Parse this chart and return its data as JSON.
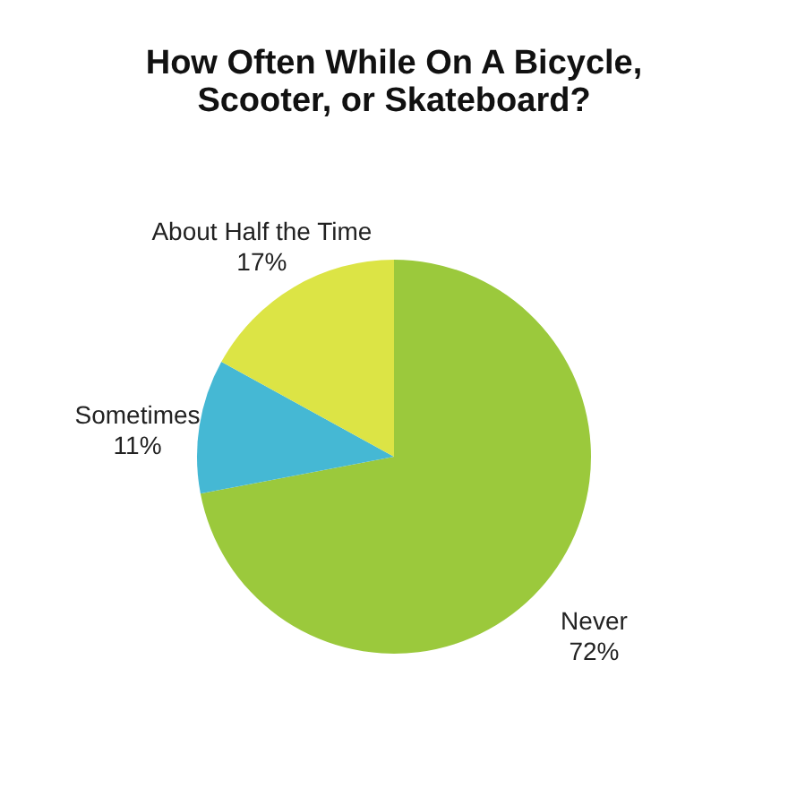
{
  "chart_data": {
    "type": "pie",
    "title": "How Often While On A Bicycle, Scooter, or Skateboard?",
    "categories": [
      "Never",
      "Sometimes",
      "About Half the Time"
    ],
    "values": [
      72,
      11,
      17
    ],
    "value_labels": [
      "72%",
      "11%",
      "17%"
    ],
    "colors": [
      "#9bc93c",
      "#45b8d4",
      "#dce445"
    ]
  }
}
